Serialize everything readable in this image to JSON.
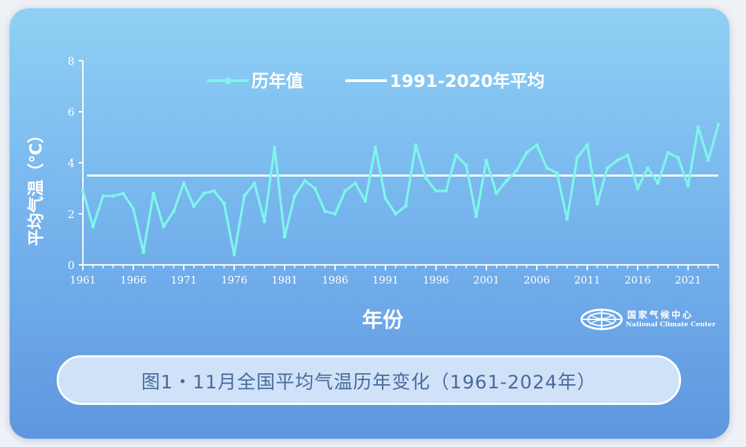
{
  "chart_data": {
    "type": "line",
    "title": "图1・11月全国平均气温历年变化（1961-2024年）",
    "xlabel": "年份",
    "ylabel": "平均气温（℃）",
    "ylim": [
      0,
      8
    ],
    "yticks": [
      0,
      2,
      4,
      6,
      8
    ],
    "xlim": [
      1961,
      2024
    ],
    "xticks": [
      1961,
      1966,
      1971,
      1976,
      1981,
      1986,
      1991,
      1996,
      2001,
      2006,
      2011,
      2016,
      2021
    ],
    "grid": false,
    "legend_position": "top",
    "colors": {
      "series_line": "#7ff5ea",
      "average_line": "#ffffff",
      "axis": "#ffffff",
      "label_text": "#ffffff"
    },
    "series": [
      {
        "name": "历年值",
        "x": [
          1961,
          1962,
          1963,
          1964,
          1965,
          1966,
          1967,
          1968,
          1969,
          1970,
          1971,
          1972,
          1973,
          1974,
          1975,
          1976,
          1977,
          1978,
          1979,
          1980,
          1981,
          1982,
          1983,
          1984,
          1985,
          1986,
          1987,
          1988,
          1989,
          1990,
          1991,
          1992,
          1993,
          1994,
          1995,
          1996,
          1997,
          1998,
          1999,
          2000,
          2001,
          2002,
          2003,
          2004,
          2005,
          2006,
          2007,
          2008,
          2009,
          2010,
          2011,
          2012,
          2013,
          2014,
          2015,
          2016,
          2017,
          2018,
          2019,
          2020,
          2021,
          2022,
          2023,
          2024
        ],
        "values": [
          2.9,
          1.5,
          2.7,
          2.7,
          2.8,
          2.2,
          0.5,
          2.8,
          1.5,
          2.1,
          3.2,
          2.3,
          2.8,
          2.9,
          2.4,
          0.4,
          2.7,
          3.2,
          1.7,
          4.6,
          1.1,
          2.7,
          3.3,
          3.0,
          2.1,
          2.0,
          2.9,
          3.2,
          2.5,
          4.6,
          2.6,
          2.0,
          2.3,
          4.7,
          3.4,
          2.9,
          2.9,
          4.3,
          3.9,
          1.9,
          4.1,
          2.8,
          3.3,
          3.7,
          4.4,
          4.7,
          3.8,
          3.6,
          1.8,
          4.2,
          4.7,
          2.4,
          3.8,
          4.1,
          4.3,
          3.0,
          3.8,
          3.2,
          4.4,
          4.2,
          3.1,
          5.4,
          4.1,
          5.5
        ]
      },
      {
        "name": "1991-2020年平均",
        "value": 3.5
      }
    ]
  },
  "logo": {
    "name_cn": "国家气候中心",
    "name_en": "National Climate Center"
  }
}
